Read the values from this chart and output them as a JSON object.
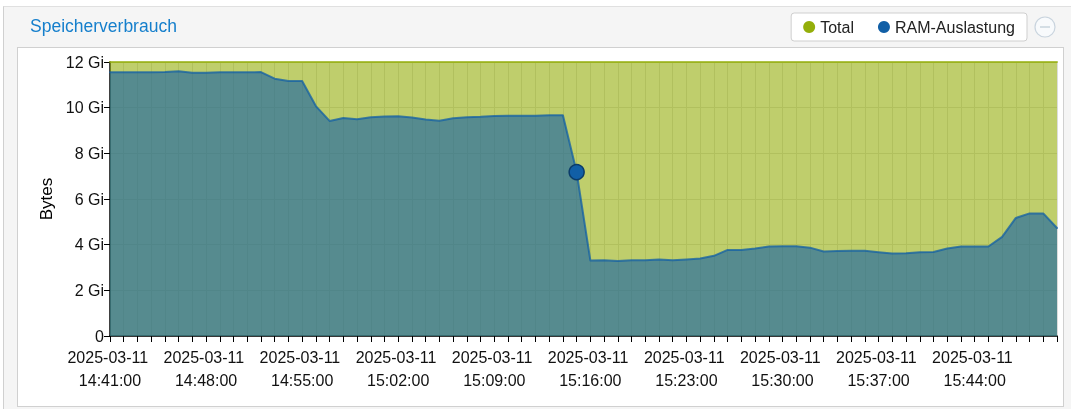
{
  "chart_data": {
    "type": "area",
    "title": "Speicherverbrauch",
    "ylabel": "Bytes",
    "grid": true,
    "legend": "top right",
    "x": [
      "2025-03-11T14:41",
      "2025-03-11T14:42",
      "2025-03-11T14:43",
      "2025-03-11T14:44",
      "2025-03-11T14:45",
      "2025-03-11T14:46",
      "2025-03-11T14:47",
      "2025-03-11T14:48",
      "2025-03-11T14:49",
      "2025-03-11T14:50",
      "2025-03-11T14:51",
      "2025-03-11T14:52",
      "2025-03-11T14:53",
      "2025-03-11T14:54",
      "2025-03-11T14:55",
      "2025-03-11T14:56",
      "2025-03-11T14:57",
      "2025-03-11T14:58",
      "2025-03-11T14:59",
      "2025-03-11T15:00",
      "2025-03-11T15:01",
      "2025-03-11T15:02",
      "2025-03-11T15:03",
      "2025-03-11T15:04",
      "2025-03-11T15:05",
      "2025-03-11T15:06",
      "2025-03-11T15:07",
      "2025-03-11T15:08",
      "2025-03-11T15:09",
      "2025-03-11T15:10",
      "2025-03-11T15:11",
      "2025-03-11T15:12",
      "2025-03-11T15:13",
      "2025-03-11T15:14",
      "2025-03-11T15:15",
      "2025-03-11T15:16",
      "2025-03-11T15:17",
      "2025-03-11T15:18",
      "2025-03-11T15:19",
      "2025-03-11T15:20",
      "2025-03-11T15:21",
      "2025-03-11T15:22",
      "2025-03-11T15:23",
      "2025-03-11T15:24",
      "2025-03-11T15:25",
      "2025-03-11T15:26",
      "2025-03-11T15:27",
      "2025-03-11T15:28",
      "2025-03-11T15:29",
      "2025-03-11T15:30",
      "2025-03-11T15:31",
      "2025-03-11T15:32",
      "2025-03-11T15:33",
      "2025-03-11T15:34",
      "2025-03-11T15:35",
      "2025-03-11T15:36",
      "2025-03-11T15:37",
      "2025-03-11T15:38",
      "2025-03-11T15:39",
      "2025-03-11T15:40",
      "2025-03-11T15:41",
      "2025-03-11T15:42",
      "2025-03-11T15:43",
      "2025-03-11T15:44",
      "2025-03-11T15:45",
      "2025-03-11T15:46",
      "2025-03-11T15:47",
      "2025-03-11T15:48",
      "2025-03-11T15:49",
      "2025-03-11T15:50"
    ],
    "xlim": [
      "2025-03-11T14:41",
      "2025-03-11T15:50"
    ],
    "xticks": [
      {
        "value": "2025-03-11T14:41",
        "label": "2025-03-11 14:41:00"
      },
      {
        "value": "2025-03-11T14:42",
        "label": null
      },
      {
        "value": "2025-03-11T14:43",
        "label": null
      },
      {
        "value": "2025-03-11T14:44",
        "label": null
      },
      {
        "value": "2025-03-11T14:45",
        "label": null
      },
      {
        "value": "2025-03-11T14:46",
        "label": null
      },
      {
        "value": "2025-03-11T14:47",
        "label": null
      },
      {
        "value": "2025-03-11T14:48",
        "label": "2025-03-11 14:48:00"
      },
      {
        "value": "2025-03-11T14:49",
        "label": null
      },
      {
        "value": "2025-03-11T14:50",
        "label": null
      },
      {
        "value": "2025-03-11T14:51",
        "label": null
      },
      {
        "value": "2025-03-11T14:52",
        "label": null
      },
      {
        "value": "2025-03-11T14:53",
        "label": null
      },
      {
        "value": "2025-03-11T14:54",
        "label": null
      },
      {
        "value": "2025-03-11T14:55",
        "label": "2025-03-11 14:55:00"
      },
      {
        "value": "2025-03-11T14:56",
        "label": null
      },
      {
        "value": "2025-03-11T14:57",
        "label": null
      },
      {
        "value": "2025-03-11T14:58",
        "label": null
      },
      {
        "value": "2025-03-11T14:59",
        "label": null
      },
      {
        "value": "2025-03-11T15:00",
        "label": null
      },
      {
        "value": "2025-03-11T15:01",
        "label": null
      },
      {
        "value": "2025-03-11T15:02",
        "label": "2025-03-11 15:02:00"
      },
      {
        "value": "2025-03-11T15:03",
        "label": null
      },
      {
        "value": "2025-03-11T15:04",
        "label": null
      },
      {
        "value": "2025-03-11T15:05",
        "label": null
      },
      {
        "value": "2025-03-11T15:06",
        "label": null
      },
      {
        "value": "2025-03-11T15:07",
        "label": null
      },
      {
        "value": "2025-03-11T15:08",
        "label": null
      },
      {
        "value": "2025-03-11T15:09",
        "label": "2025-03-11 15:09:00"
      },
      {
        "value": "2025-03-11T15:10",
        "label": null
      },
      {
        "value": "2025-03-11T15:11",
        "label": null
      },
      {
        "value": "2025-03-11T15:12",
        "label": null
      },
      {
        "value": "2025-03-11T15:13",
        "label": null
      },
      {
        "value": "2025-03-11T15:14",
        "label": null
      },
      {
        "value": "2025-03-11T15:15",
        "label": null
      },
      {
        "value": "2025-03-11T15:16",
        "label": "2025-03-11 15:16:00"
      },
      {
        "value": "2025-03-11T15:17",
        "label": null
      },
      {
        "value": "2025-03-11T15:18",
        "label": null
      },
      {
        "value": "2025-03-11T15:19",
        "label": null
      },
      {
        "value": "2025-03-11T15:20",
        "label": null
      },
      {
        "value": "2025-03-11T15:21",
        "label": null
      },
      {
        "value": "2025-03-11T15:22",
        "label": null
      },
      {
        "value": "2025-03-11T15:23",
        "label": "2025-03-11 15:23:00"
      },
      {
        "value": "2025-03-11T15:24",
        "label": null
      },
      {
        "value": "2025-03-11T15:25",
        "label": null
      },
      {
        "value": "2025-03-11T15:26",
        "label": null
      },
      {
        "value": "2025-03-11T15:27",
        "label": null
      },
      {
        "value": "2025-03-11T15:28",
        "label": null
      },
      {
        "value": "2025-03-11T15:29",
        "label": null
      },
      {
        "value": "2025-03-11T15:30",
        "label": "2025-03-11 15:30:00"
      },
      {
        "value": "2025-03-11T15:31",
        "label": null
      },
      {
        "value": "2025-03-11T15:32",
        "label": null
      },
      {
        "value": "2025-03-11T15:33",
        "label": null
      },
      {
        "value": "2025-03-11T15:34",
        "label": null
      },
      {
        "value": "2025-03-11T15:35",
        "label": null
      },
      {
        "value": "2025-03-11T15:36",
        "label": null
      },
      {
        "value": "2025-03-11T15:37",
        "label": "2025-03-11 15:37:00"
      },
      {
        "value": "2025-03-11T15:38",
        "label": null
      },
      {
        "value": "2025-03-11T15:39",
        "label": null
      },
      {
        "value": "2025-03-11T15:40",
        "label": null
      },
      {
        "value": "2025-03-11T15:41",
        "label": null
      },
      {
        "value": "2025-03-11T15:42",
        "label": null
      },
      {
        "value": "2025-03-11T15:43",
        "label": null
      },
      {
        "value": "2025-03-11T15:44",
        "label": "2025-03-11 15:44:00"
      },
      {
        "value": "2025-03-11T15:45",
        "label": null
      },
      {
        "value": "2025-03-11T15:46",
        "label": null
      },
      {
        "value": "2025-03-11T15:47",
        "label": null
      },
      {
        "value": "2025-03-11T15:48",
        "label": null
      },
      {
        "value": "2025-03-11T15:49",
        "label": null
      },
      {
        "value": "2025-03-11T15:50",
        "label": null
      }
    ],
    "ylim": [
      0,
      12
    ],
    "yticks": [
      0,
      {
        "value": 2,
        "label": "2 Gi"
      },
      {
        "value": 4,
        "label": "4 Gi"
      },
      {
        "value": 6,
        "label": "6 Gi"
      },
      {
        "value": 8,
        "label": "8 Gi"
      },
      {
        "value": 10,
        "label": "10 Gi"
      },
      {
        "value": 12,
        "label": "12 Gi"
      }
    ],
    "series": [
      {
        "name": "Total",
        "color": "#94ae0a",
        "values": [
          12,
          12,
          12,
          12,
          12,
          12,
          12,
          12,
          12,
          12,
          12,
          12,
          12,
          12,
          12,
          12,
          12,
          12,
          12,
          12,
          12,
          12,
          12,
          12,
          12,
          12,
          12,
          12,
          12,
          12,
          12,
          12,
          12,
          12,
          12,
          12,
          12,
          12,
          12,
          12,
          12,
          12,
          12,
          12,
          12,
          12,
          12,
          12,
          12,
          12,
          12,
          12,
          12,
          12,
          12,
          12,
          12,
          12,
          12,
          12,
          12,
          12,
          12,
          12,
          12,
          12,
          12,
          12,
          12,
          12
        ]
      },
      {
        "name": "RAM-Auslastung",
        "color": "#115fa6",
        "values": [
          11.55,
          11.55,
          11.55,
          11.55,
          11.56,
          11.6,
          11.53,
          11.53,
          11.55,
          11.55,
          11.55,
          11.56,
          11.27,
          11.17,
          11.17,
          10.07,
          9.42,
          9.55,
          9.49,
          9.58,
          9.61,
          9.62,
          9.57,
          9.48,
          9.43,
          9.54,
          9.58,
          9.6,
          9.64,
          9.65,
          9.65,
          9.65,
          9.67,
          9.67,
          7.18,
          3.31,
          3.32,
          3.28,
          3.32,
          3.32,
          3.35,
          3.32,
          3.35,
          3.39,
          3.51,
          3.77,
          3.77,
          3.83,
          3.92,
          3.93,
          3.93,
          3.87,
          3.7,
          3.72,
          3.73,
          3.73,
          3.67,
          3.61,
          3.62,
          3.67,
          3.68,
          3.83,
          3.92,
          3.92,
          3.92,
          4.34,
          5.17,
          5.37,
          5.37,
          4.73
        ]
      },
      {
        "type": "scatter",
        "color": "#115fa6",
        "marker": "circle",
        "x": [
          "2025-03-11T15:15"
        ],
        "values": [
          7.18
        ]
      }
    ]
  }
}
